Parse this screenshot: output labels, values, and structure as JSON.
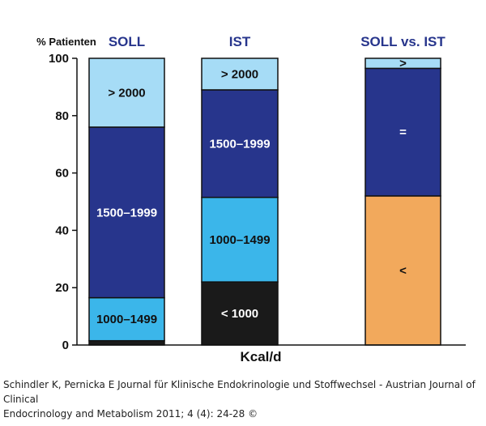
{
  "chart_data": {
    "type": "bar",
    "stacked": true,
    "categories": [
      "SOLL",
      "IST",
      "SOLL vs. IST"
    ],
    "ylabel": "% Patienten",
    "xlabel": "Kcal/d",
    "ylim": [
      0,
      100
    ],
    "yticks": [
      0,
      20,
      40,
      60,
      80,
      100
    ],
    "grid": false,
    "bars": [
      {
        "name": "SOLL",
        "segments": [
          {
            "label": "",
            "value": 1.5,
            "color": "#1a1a1a"
          },
          {
            "label": "1000–1499",
            "value": 15,
            "color": "#3bb6ea"
          },
          {
            "label": "1500–1999",
            "value": 59.5,
            "color": "#27358c"
          },
          {
            "label": "> 2000",
            "value": 24,
            "color": "#a6dcf6"
          }
        ]
      },
      {
        "name": "IST",
        "segments": [
          {
            "label": "< 1000",
            "value": 22,
            "color": "#1a1a1a"
          },
          {
            "label": "1000–1499",
            "value": 29.5,
            "color": "#3bb6ea"
          },
          {
            "label": "1500–1999",
            "value": 37.5,
            "color": "#27358c"
          },
          {
            "label": "> 2000",
            "value": 11,
            "color": "#a6dcf6"
          }
        ]
      },
      {
        "name": "SOLL vs. IST",
        "segments": [
          {
            "label": "<",
            "value": 52,
            "color": "#f2a95c"
          },
          {
            "label": "=",
            "value": 44.5,
            "color": "#27358c"
          },
          {
            "label": ">",
            "value": 3.5,
            "color": "#a6dcf6"
          }
        ]
      }
    ]
  },
  "caption": {
    "line1": "Schindler K, Pernicka E Journal für Klinische Endokrinologie und Stoffwechsel - Austrian Journal of Clinical",
    "line2": "Endocrinology and Metabolism 2011; 4 (4): 24-28 ©"
  }
}
